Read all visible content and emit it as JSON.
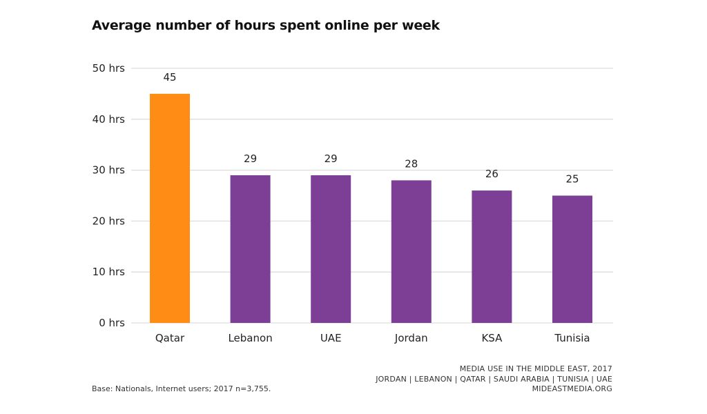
{
  "chart_data": {
    "type": "bar",
    "title": "Average number of hours spent online per week",
    "xlabel": "",
    "ylabel": "",
    "categories": [
      "Qatar",
      "Lebanon",
      "UAE",
      "Jordan",
      "KSA",
      "Tunisia"
    ],
    "values": [
      45,
      29,
      29,
      28,
      26,
      25
    ],
    "data_labels": [
      "45",
      "29",
      "29",
      "28",
      "26",
      "25"
    ],
    "ylim": [
      0,
      50
    ],
    "yticks": [
      0,
      10,
      20,
      30,
      40,
      50
    ],
    "ytick_labels": [
      "0 hrs",
      "10 hrs",
      "20 hrs",
      "30 hrs",
      "40 hrs",
      "50 hrs"
    ],
    "grid": true,
    "legend": "none",
    "colors": {
      "highlight": "#FF8C14",
      "default": "#7D3F96",
      "grid": "#DDDDDD"
    },
    "highlight_category": "Qatar"
  },
  "footer": {
    "base_note": "Base: Nationals, Internet users; 2017 n=3,755.",
    "source_line1": "MEDIA USE IN THE MIDDLE EAST, 2017",
    "source_line2": "JORDAN | LEBANON | QATAR | SAUDI ARABIA | TUNISIA | UAE",
    "source_line3": "MIDEASTMEDIA.ORG"
  }
}
